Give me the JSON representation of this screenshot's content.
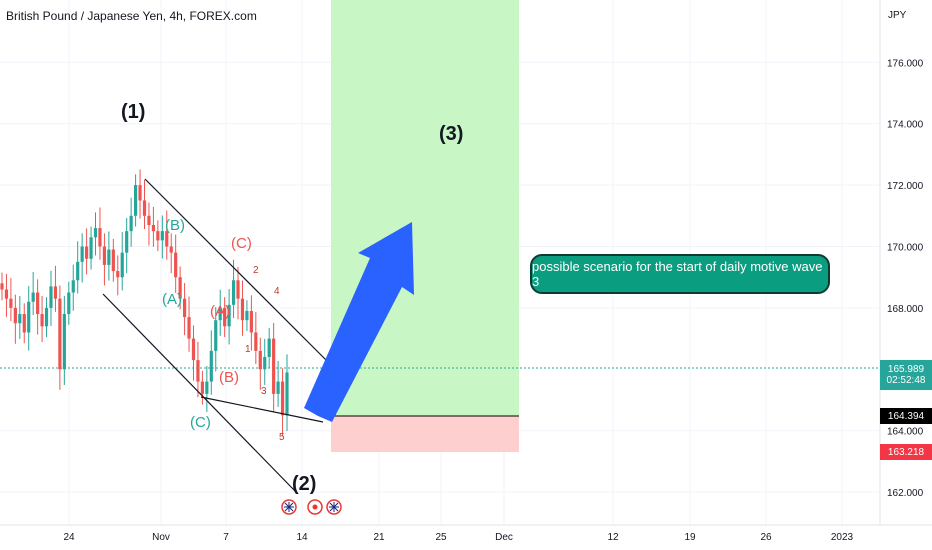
{
  "header": {
    "title": "British Pound / Japanese Yen, 4h, FOREX.com"
  },
  "currency_label": "JPY",
  "colors": {
    "up": "#26a69a",
    "down": "#ef5350",
    "target_zone": "#c8f7c5",
    "stop_zone": "#fdcfcf",
    "current_price_tag": "#26a69a",
    "level_black": "#000000",
    "level_red": "#f23645",
    "arrow": "#2962ff",
    "note_bg": "#0b9d7f"
  },
  "annotations": {
    "wave1": "(1)",
    "wave2": "(2)",
    "wave3": "(3)",
    "minor_b_top": "(B)",
    "minor_a_left": "(A)",
    "minor_c_left": "(C)",
    "minor_c_right": "(C)",
    "minor_a_right": "(A)",
    "minor_b_right": "(B)",
    "sub_2": "2",
    "sub_4": "4",
    "sub_1": "1",
    "sub_3": "3",
    "sub_5": "5",
    "note": "possible scenario for the start of daily motive wave 3"
  },
  "price_tags": {
    "current_price": "165.989",
    "countdown": "02:52:48",
    "level_black": "164.394",
    "level_red": "163.218"
  },
  "chart_data": {
    "type": "candlestick",
    "title": "British Pound / Japanese Yen, 4h, FOREX.com",
    "y_axis": {
      "label": "JPY",
      "range": [
        160.9,
        178.0
      ],
      "ticks": [
        "176.000",
        "174.000",
        "172.000",
        "170.000",
        "168.000",
        "164.000",
        "162.000"
      ]
    },
    "x_axis": {
      "ticks": [
        "24",
        "Nov",
        "7",
        "14",
        "21",
        "25",
        "Dec",
        "12",
        "19",
        "26",
        "2023"
      ]
    },
    "current_price": 165.989,
    "levels": [
      {
        "name": "entry",
        "value": 164.394
      },
      {
        "name": "stop",
        "value": 163.218
      }
    ],
    "zones": [
      {
        "name": "target",
        "from": 164.394,
        "to": 178.0
      },
      {
        "name": "stop",
        "from": 163.218,
        "to": 164.394
      }
    ],
    "close_path": [
      168.6,
      168.3,
      168.0,
      167.5,
      167.8,
      167.2,
      168.2,
      168.5,
      167.8,
      167.4,
      168.0,
      168.7,
      168.3,
      166.0,
      167.8,
      168.5,
      168.9,
      169.5,
      170.0,
      169.6,
      170.3,
      170.6,
      170.0,
      169.4,
      169.9,
      169.2,
      169.0,
      169.8,
      170.5,
      171.0,
      172.0,
      171.5,
      171.0,
      170.7,
      170.5,
      170.2,
      170.5,
      170.0,
      169.8,
      169.0,
      168.3,
      167.7,
      167.0,
      166.3,
      165.6,
      165.2,
      165.6,
      166.6,
      167.6,
      168.0,
      167.4,
      168.1,
      168.9,
      168.3,
      167.6,
      167.9,
      167.2,
      166.6,
      166.0,
      166.4,
      167.0,
      165.2,
      165.6,
      164.5,
      165.9
    ]
  }
}
